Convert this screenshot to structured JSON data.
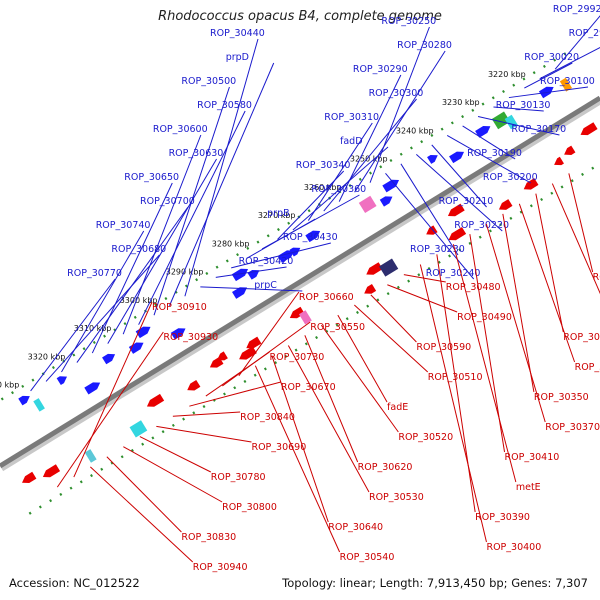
{
  "title": "Rhodococcus opacus B4, complete genome",
  "footer": {
    "accession": "Accession: NC_012522",
    "topology": "Topology: linear; Length: 7,913,450 bp; Genes: 7,307"
  },
  "ticks": [
    "3220 kbp",
    "3230 kbp",
    "3240 kbp",
    "3250 kbp",
    "3260 kbp",
    "3270 kbp",
    "3280 kbp",
    "3290 kbp",
    "3300 kbp",
    "3310 kbp",
    "3320 kbp",
    "3330 kbp"
  ],
  "top_labels": [
    "ROP_29920",
    "ROP_29930",
    "ROP_30020",
    "ROP_30100",
    "ROP_30130",
    "ROP_30170",
    "ROP_30190",
    "ROP_30200",
    "ROP_30210",
    "ROP_30220",
    "ROP_30230",
    "ROP_30240",
    "ROP_30250",
    "ROP_30280",
    "ROP_30290",
    "ROP_30300",
    "ROP_30310",
    "fadD",
    "ROP_30340",
    "ROP_30360",
    "prpB",
    "ROP_30430",
    "ROP_30420",
    "prpC",
    "ROP_30440",
    "prpD",
    "ROP_30500",
    "ROP_30580",
    "ROP_30600",
    "ROP_30630",
    "ROP_30650",
    "ROP_30700",
    "ROP_30740",
    "ROP_30680",
    "ROP_30770"
  ],
  "bottom_labels": [
    "ROP_30180",
    "ROP_30260",
    "ROP_30270",
    "ROP_30330",
    "ROP_30350",
    "ROP_30370",
    "ROP_30410",
    "metE",
    "ROP_30390",
    "ROP_30400",
    "ROP_30480",
    "ROP_30490",
    "ROP_30590",
    "ROP_30510",
    "fadE",
    "ROP_30520",
    "ROP_30620",
    "ROP_30530",
    "ROP_30640",
    "ROP_30540",
    "ROP_30660",
    "ROP_30550",
    "ROP_30730",
    "ROP_30670",
    "ROP_30840",
    "ROP_30690",
    "ROP_30780",
    "ROP_30800",
    "ROP_30830",
    "ROP_30940",
    "ROP_30910",
    "ROP_30930"
  ],
  "colors": {
    "forward_gene": "#1a1aff",
    "reverse_gene": "#e80000",
    "top_label_text": "#1a1acc",
    "bottom_label_text": "#cc0000",
    "backbone": "#7a7a7a",
    "tick_dash": "#2f8f2f"
  }
}
